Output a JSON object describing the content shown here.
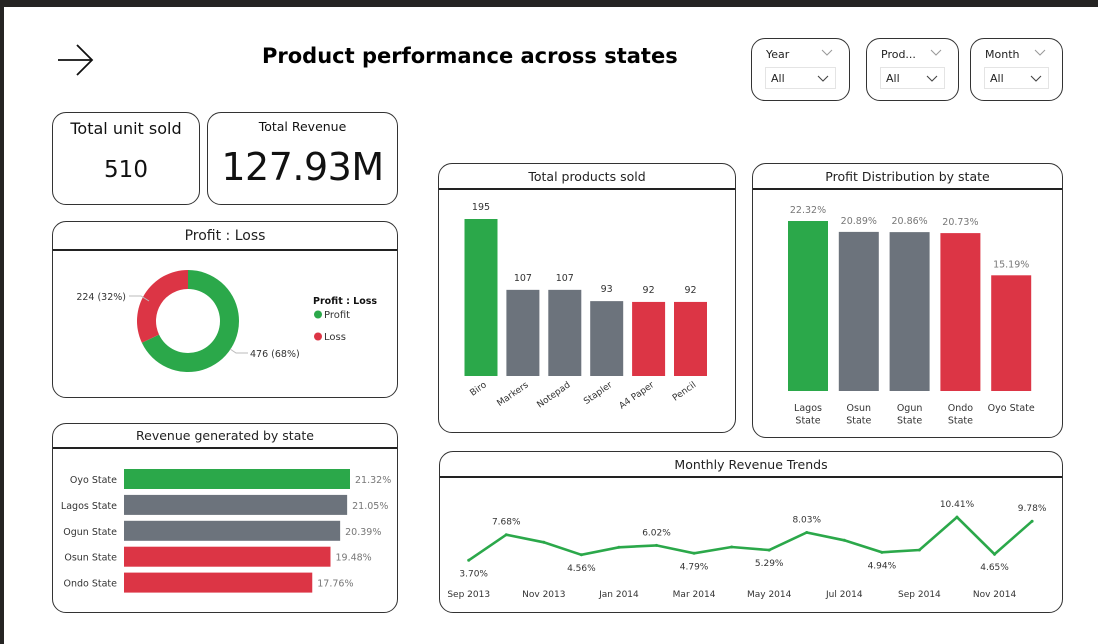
{
  "header": {
    "title": "Product performance across states",
    "nav_icon": "arrow-right-icon"
  },
  "slicers": [
    {
      "label": "Year",
      "value": "All"
    },
    {
      "label": "Prod...",
      "value": "All"
    },
    {
      "label": "Month",
      "value": "All"
    }
  ],
  "kpis": {
    "units": {
      "title": "Total unit sold",
      "value": "510"
    },
    "revenue": {
      "title": "Total Revenue",
      "value": "127.93M"
    }
  },
  "colors": {
    "green": "#2BA84A",
    "gray": "#6C737C",
    "red": "#DC3545"
  },
  "chart_data": [
    {
      "id": "profit_loss",
      "type": "pie",
      "title": "Profit : Loss",
      "legend_title": "Profit : Loss",
      "legend_position": "right",
      "slices": [
        {
          "label": "Profit",
          "value": 476,
          "percent": 68,
          "data_label": "476 (68%)",
          "color": "#2BA84A"
        },
        {
          "label": "Loss",
          "value": 224,
          "percent": 32,
          "data_label": "224 (32%)",
          "color": "#DC3545"
        }
      ]
    },
    {
      "id": "revenue_by_state",
      "type": "bar",
      "orientation": "horizontal",
      "title": "Revenue generated by state",
      "categories": [
        "Oyo State",
        "Lagos State",
        "Ogun State",
        "Osun State",
        "Ondo State"
      ],
      "values": [
        21.32,
        21.05,
        20.39,
        19.48,
        17.76
      ],
      "data_labels": [
        "21.32%",
        "21.05%",
        "20.39%",
        "19.48%",
        "17.76%"
      ],
      "bar_colors": [
        "#2BA84A",
        "#6C737C",
        "#6C737C",
        "#DC3545",
        "#DC3545"
      ],
      "unit": "%"
    },
    {
      "id": "products_sold",
      "type": "bar",
      "title": "Total products sold",
      "categories": [
        "Biro",
        "Markers",
        "Notepad",
        "Stapler",
        "A4 Paper",
        "Pencil"
      ],
      "values": [
        195,
        107,
        107,
        93,
        92,
        92
      ],
      "data_labels": [
        "195",
        "107",
        "107",
        "93",
        "92",
        "92"
      ],
      "bar_colors": [
        "#2BA84A",
        "#6C737C",
        "#6C737C",
        "#6C737C",
        "#DC3545",
        "#DC3545"
      ],
      "xlabel": "",
      "ylabel": ""
    },
    {
      "id": "profit_by_state",
      "type": "bar",
      "title": "Profit Distribution by state",
      "categories": [
        "Lagos State",
        "Osun State",
        "Ogun State",
        "Ondo State",
        "Oyo State"
      ],
      "category_lines": [
        [
          "Lagos",
          "State"
        ],
        [
          "Osun",
          "State"
        ],
        [
          "Ogun",
          "State"
        ],
        [
          "Ondo",
          "State"
        ],
        [
          "Oyo State"
        ]
      ],
      "values": [
        22.32,
        20.89,
        20.86,
        20.73,
        15.19
      ],
      "data_labels": [
        "22.32%",
        "20.89%",
        "20.86%",
        "20.73%",
        "15.19%"
      ],
      "bar_colors": [
        "#2BA84A",
        "#6C737C",
        "#6C737C",
        "#DC3545",
        "#DC3545"
      ],
      "unit": "%"
    },
    {
      "id": "monthly_revenue",
      "type": "line",
      "title": "Monthly Revenue Trends",
      "x": [
        "Sep 2013",
        "Oct 2013",
        "Nov 2013",
        "Dec 2013",
        "Jan 2014",
        "Feb 2014",
        "Mar 2014",
        "Apr 2014",
        "May 2014",
        "Jun 2014",
        "Jul 2014",
        "Aug 2014",
        "Sep 2014",
        "Oct 2014",
        "Nov 2014",
        "Dec 2014"
      ],
      "values": [
        3.7,
        7.68,
        6.5,
        4.56,
        5.72,
        6.02,
        4.79,
        5.77,
        5.29,
        8.03,
        6.81,
        4.94,
        5.3,
        10.41,
        4.65,
        9.78
      ],
      "point_labels": [
        "3.70%",
        "7.68%",
        null,
        "4.56%",
        null,
        "6.02%",
        "4.79%",
        null,
        "5.29%",
        "8.03%",
        null,
        "4.94%",
        null,
        "10.41%",
        "4.65%",
        "9.78%"
      ],
      "label_below": [
        true,
        false,
        false,
        true,
        false,
        false,
        true,
        false,
        true,
        false,
        false,
        true,
        false,
        false,
        true,
        false
      ],
      "x_tick_labels": [
        "Sep 2013",
        "Nov 2013",
        "Jan 2014",
        "Mar 2014",
        "May 2014",
        "Jul 2014",
        "Sep 2014",
        "Nov 2014"
      ],
      "x_tick_index": [
        0,
        2,
        4,
        6,
        8,
        10,
        12,
        14
      ],
      "line_color": "#2BA84A",
      "unit": "%"
    }
  ]
}
